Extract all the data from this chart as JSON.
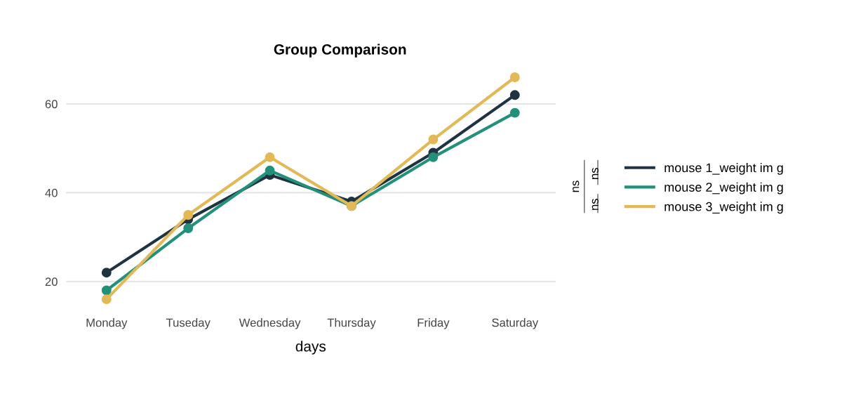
{
  "chart_data": {
    "type": "line",
    "title": "Group Comparison",
    "xlabel": "days",
    "categories": [
      "Monday",
      "Tuseday",
      "Wednesday",
      "Thursday",
      "Friday",
      "Saturday"
    ],
    "series": [
      {
        "name": "mouse 1_weight im g",
        "color": "#1f3442",
        "values": [
          22,
          34,
          44,
          38,
          49,
          62
        ]
      },
      {
        "name": "mouse 2_weight im g",
        "color": "#22917a",
        "values": [
          18,
          32,
          45,
          37,
          48,
          58
        ]
      },
      {
        "name": "mouse 3_weight im g",
        "color": "#e3b955",
        "values": [
          16,
          35,
          48,
          37,
          52,
          66
        ]
      }
    ],
    "ylim": [
      13.5,
      68.5
    ],
    "yticks": [
      20,
      40,
      60
    ],
    "grid": "y",
    "legend": "right",
    "marker": "circle",
    "line_style": "solid",
    "annotations": [
      "ns",
      "ns",
      "ns"
    ]
  }
}
